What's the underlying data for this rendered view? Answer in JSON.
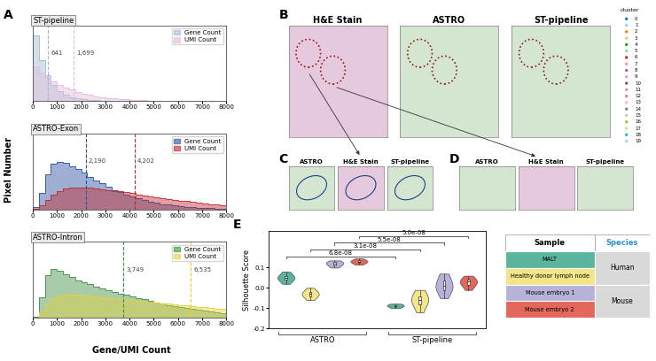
{
  "panel_labels": [
    "A",
    "B",
    "C",
    "D",
    "E"
  ],
  "shared_axis_labels": {
    "x": "Gene/UMI Count",
    "y": "Pixel Number"
  },
  "chart_data": [
    {
      "type": "histogram",
      "title": "ST-pipeline",
      "bins": [
        0,
        250,
        500,
        750,
        1000,
        1250,
        1500,
        1750,
        2000,
        2250,
        2500,
        2750,
        3000,
        3250,
        3500,
        3750,
        4000,
        4250,
        4500,
        4750,
        5000,
        5250,
        5500,
        5750,
        6000,
        6250,
        6500,
        6750,
        7000,
        7250,
        7500,
        7750,
        8000
      ],
      "series": [
        {
          "name": "Gene Count",
          "color": "#9bbbd4",
          "median": 641,
          "values": [
            950,
            600,
            380,
            240,
            150,
            95,
            60,
            40,
            25,
            15,
            10,
            6,
            4,
            2,
            1,
            1,
            0,
            0,
            0,
            0,
            0,
            0,
            0,
            0,
            0,
            0,
            0,
            0,
            0,
            0,
            0,
            0
          ]
        },
        {
          "name": "UMI Count",
          "color": "#e3bcd8",
          "median": 1699,
          "median_label": "1,699",
          "values": [
            500,
            420,
            350,
            290,
            240,
            200,
            165,
            135,
            110,
            90,
            72,
            58,
            46,
            37,
            30,
            24,
            19,
            15,
            12,
            9,
            7,
            5,
            4,
            3,
            2,
            2,
            1,
            1,
            1,
            0,
            0,
            0
          ]
        }
      ],
      "xlim": [
        0,
        8000
      ],
      "xticks": [
        0,
        1000,
        2000,
        3000,
        4000,
        5000,
        6000,
        7000,
        8000
      ],
      "ylim": [
        0,
        1100
      ],
      "tick_labels": "x",
      "legend": "upper right"
    },
    {
      "type": "histogram",
      "title": "ASTRO-Exon",
      "bins": [
        0,
        250,
        500,
        750,
        1000,
        1250,
        1500,
        1750,
        2000,
        2250,
        2500,
        2750,
        3000,
        3250,
        3500,
        3750,
        4000,
        4250,
        4500,
        4750,
        5000,
        5250,
        5500,
        5750,
        6000,
        6250,
        6500,
        6750,
        7000,
        7250,
        7500,
        7750,
        8000
      ],
      "series": [
        {
          "name": "Gene Count",
          "color": "#2b4f9e",
          "median": 2190,
          "median_label": "2,190",
          "values": [
            20,
            150,
            320,
            420,
            440,
            430,
            400,
            370,
            340,
            300,
            270,
            240,
            210,
            180,
            160,
            140,
            120,
            100,
            85,
            72,
            60,
            50,
            42,
            35,
            28,
            22,
            18,
            15,
            12,
            10,
            8,
            6
          ]
        },
        {
          "name": "UMI Count",
          "color": "#c0282c",
          "median": 4202,
          "median_label": "4,202",
          "values": [
            5,
            40,
            90,
            140,
            170,
            190,
            200,
            205,
            205,
            200,
            195,
            188,
            180,
            172,
            165,
            158,
            150,
            140,
            130,
            122,
            114,
            106,
            98,
            90,
            82,
            75,
            68,
            62,
            56,
            50,
            45,
            40
          ]
        }
      ],
      "xlim": [
        0,
        8000
      ],
      "xticks": [
        0,
        1000,
        2000,
        3000,
        4000,
        5000,
        6000,
        7000,
        8000
      ],
      "ylim": [
        0,
        700
      ],
      "tick_labels": "x",
      "legend": "upper right"
    },
    {
      "type": "histogram",
      "title": "ASTRO-Intron",
      "bins": [
        0,
        250,
        500,
        750,
        1000,
        1250,
        1500,
        1750,
        2000,
        2250,
        2500,
        2750,
        3000,
        3250,
        3500,
        3750,
        4000,
        4250,
        4500,
        4750,
        5000,
        5250,
        5500,
        5750,
        6000,
        6250,
        6500,
        6750,
        7000,
        7250,
        7500,
        7750,
        8000
      ],
      "series": [
        {
          "name": "Gene Count",
          "color": "#3e8e41",
          "median": 3749,
          "median_label": "3,749",
          "values": [
            10,
            200,
            420,
            480,
            460,
            430,
            400,
            370,
            350,
            330,
            310,
            290,
            270,
            255,
            240,
            225,
            210,
            195,
            180,
            165,
            150,
            138,
            126,
            115,
            104,
            94,
            85,
            76,
            68,
            60,
            53,
            47
          ]
        },
        {
          "name": "UMI Count",
          "color": "#e6cf3c",
          "median": 6535,
          "median_label": "6,535",
          "values": [
            2,
            60,
            140,
            190,
            215,
            225,
            228,
            226,
            222,
            216,
            210,
            204,
            198,
            192,
            186,
            180,
            174,
            168,
            162,
            156,
            150,
            144,
            138,
            132,
            126,
            120,
            114,
            108,
            102,
            96,
            90,
            84
          ]
        }
      ],
      "xlim": [
        0,
        8000
      ],
      "xticks": [
        0,
        1000,
        2000,
        3000,
        4000,
        5000,
        6000,
        7000,
        8000
      ],
      "ylim": [
        0,
        750
      ],
      "tick_labels": "x",
      "legend": "upper right"
    },
    {
      "type": "violin",
      "ylabel": "Silhouette Score",
      "groups": [
        "ASTRO",
        "ST-pipeline"
      ],
      "series": [
        {
          "name": "MALT",
          "color": "#5bb59e",
          "values": [
            [
              0.02,
              0.035,
              0.045,
              0.05,
              0.055,
              0.065,
              0.08
            ],
            [
              -0.1,
              -0.095,
              -0.09,
              -0.088,
              -0.085,
              -0.082,
              -0.078
            ]
          ]
        },
        {
          "name": "Healthy donor lymph node",
          "color": "#f3e58a",
          "values": [
            [
              -0.06,
              -0.045,
              -0.035,
              -0.03,
              -0.025,
              -0.015,
              0.0
            ],
            [
              -0.12,
              -0.09,
              -0.07,
              -0.06,
              -0.05,
              -0.03,
              -0.01
            ]
          ]
        },
        {
          "name": "Mouse embryo 1",
          "color": "#b7b2da",
          "values": [
            [
              0.1,
              0.11,
              0.115,
              0.12,
              0.125,
              0.13,
              0.135
            ],
            [
              -0.05,
              -0.02,
              0.0,
              0.01,
              0.02,
              0.05,
              0.07
            ]
          ]
        },
        {
          "name": "Mouse embryo 2",
          "color": "#e3675a",
          "values": [
            [
              0.115,
              0.122,
              0.128,
              0.13,
              0.133,
              0.138,
              0.145
            ],
            [
              -0.01,
              0.01,
              0.02,
              0.03,
              0.035,
              0.045,
              0.06
            ]
          ]
        }
      ],
      "comparisons": [
        {
          "series": "MALT",
          "label": "6.8e-08"
        },
        {
          "series": "Healthy donor lymph node",
          "label": "3.1e-08"
        },
        {
          "series": "Mouse embryo 1",
          "label": "5.5e-08"
        },
        {
          "series": "Mouse embryo 2",
          "label": "5.0e-08"
        }
      ],
      "ylim": [
        -0.2,
        0.28
      ],
      "yticks": [
        -0.2,
        -0.1,
        0.0,
        0.1
      ],
      "tick_labels": "y"
    }
  ],
  "images": {
    "B": [
      "H&E Stain",
      "ASTRO",
      "ST-pipeline"
    ],
    "C": [
      "ASTRO",
      "H&E Stain",
      "ST-pipeline"
    ],
    "D": [
      "ASTRO",
      "H&E Stain",
      "ST-pipeline"
    ]
  },
  "cluster_legend": {
    "title": "cluster",
    "labels": [
      "0",
      "1",
      "2",
      "3",
      "4",
      "5",
      "6",
      "7",
      "8",
      "9",
      "10",
      "11",
      "12",
      "13",
      "14",
      "15",
      "16",
      "17",
      "18",
      "19"
    ],
    "colors": [
      "#1f77b4",
      "#aec7e8",
      "#ff7f0e",
      "#ffbb78",
      "#2ca02c",
      "#98df8a",
      "#d62728",
      "#ff9896",
      "#9467bd",
      "#c5b0d5",
      "#8c564b",
      "#c49c94",
      "#e377c2",
      "#f7b6d2",
      "#7f7f7f",
      "#c7c7c7",
      "#bcbd22",
      "#dbdb8d",
      "#17becf",
      "#9edae5"
    ]
  },
  "table": {
    "header": [
      "Sample",
      "Species"
    ],
    "species": [
      {
        "label": "Human",
        "rows": 2
      },
      {
        "label": "Mouse",
        "rows": 2
      }
    ]
  }
}
